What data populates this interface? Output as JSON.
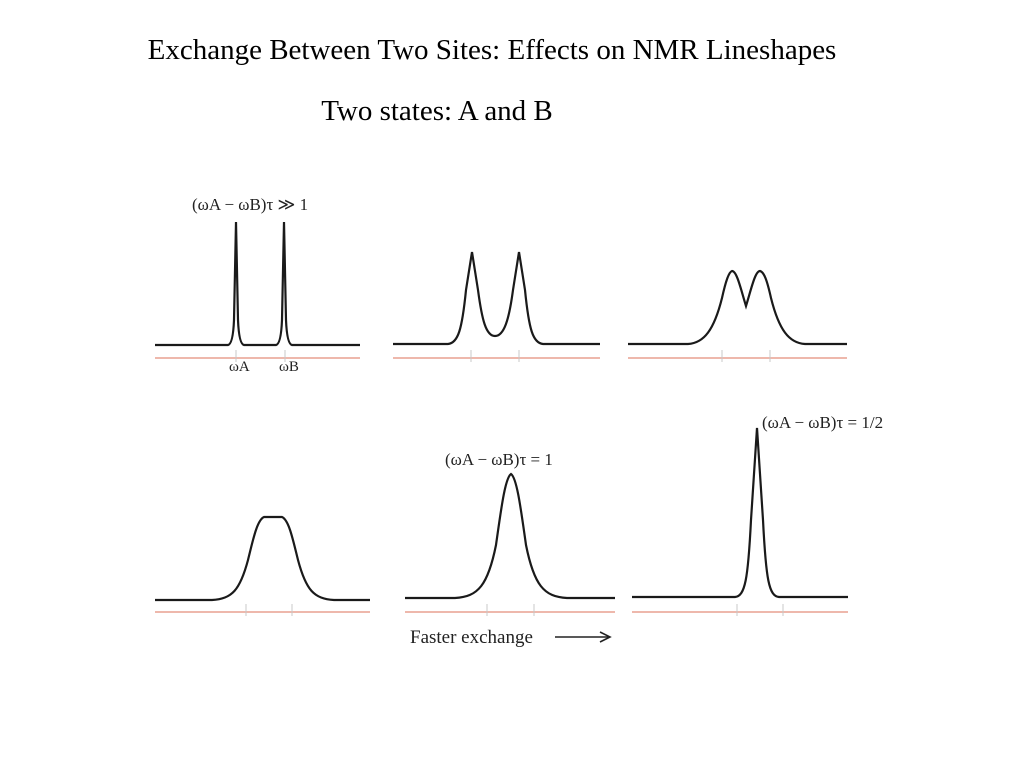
{
  "title": "Exchange Between Two Sites: Effects on NMR Lineshapes",
  "subtitle": "Two states: A and B",
  "labels": {
    "slow": "(ωA − ωB)τ ≫ 1",
    "omega_a": "ωA",
    "omega_b": "ωB",
    "coalescence": "(ωA − ωB)τ = 1",
    "fast": "(ωA − ωB)τ = 1/2"
  },
  "caption": "Faster exchange",
  "colors": {
    "trace": "#1a1a1a",
    "baseline": "#e8a090",
    "tick": "#c8c8c8"
  }
}
